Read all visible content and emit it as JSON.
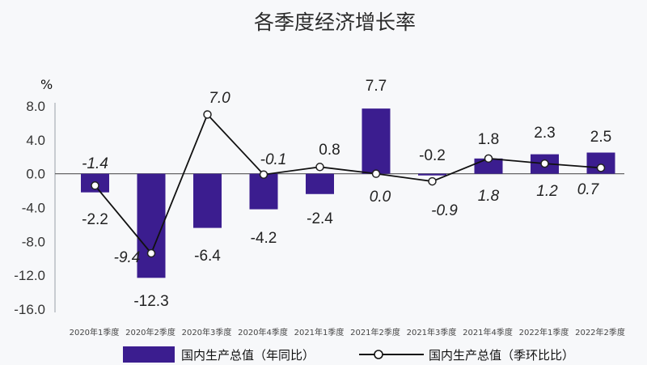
{
  "chart_data": {
    "type": "bar+line",
    "title": "各季度经济增长率",
    "ylabel": "%",
    "ylim": [
      -16.0,
      8.0
    ],
    "yticks": [
      "8.0",
      "4.0",
      "0.0",
      "-4.0",
      "-8.0",
      "-12.0",
      "-16.0"
    ],
    "categories": [
      "2020年1季度",
      "2020年2季度",
      "2020年3季度",
      "2020年4季度",
      "2021年1季度",
      "2021年2季度",
      "2021年3季度",
      "2021年4季度",
      "2022年1季度",
      "2022年2季度"
    ],
    "series": [
      {
        "name": "国内生产总值（年同比）",
        "type": "bar",
        "color": "#3b1d8f",
        "values": [
          -2.2,
          -12.3,
          -6.4,
          -4.2,
          -2.4,
          7.7,
          -0.2,
          1.8,
          2.3,
          2.5
        ],
        "labels": [
          "-2.2",
          "-12.3",
          "-6.4",
          "-4.2",
          "-2.4",
          "7.7",
          "-0.2",
          "1.8",
          "2.3",
          "2.5"
        ]
      },
      {
        "name": "国内生产总值（季环比比）",
        "type": "line",
        "color": "#111111",
        "values": [
          -1.4,
          -9.4,
          7.0,
          -0.1,
          0.8,
          0.0,
          -0.9,
          1.8,
          1.2,
          0.7
        ],
        "labels": [
          "-1.4",
          "-9.4",
          "7.0",
          "-0.1",
          "0.8",
          "0.0",
          "-0.9",
          "1.8",
          "1.2",
          "0.7"
        ]
      }
    ],
    "legend_position": "bottom"
  }
}
